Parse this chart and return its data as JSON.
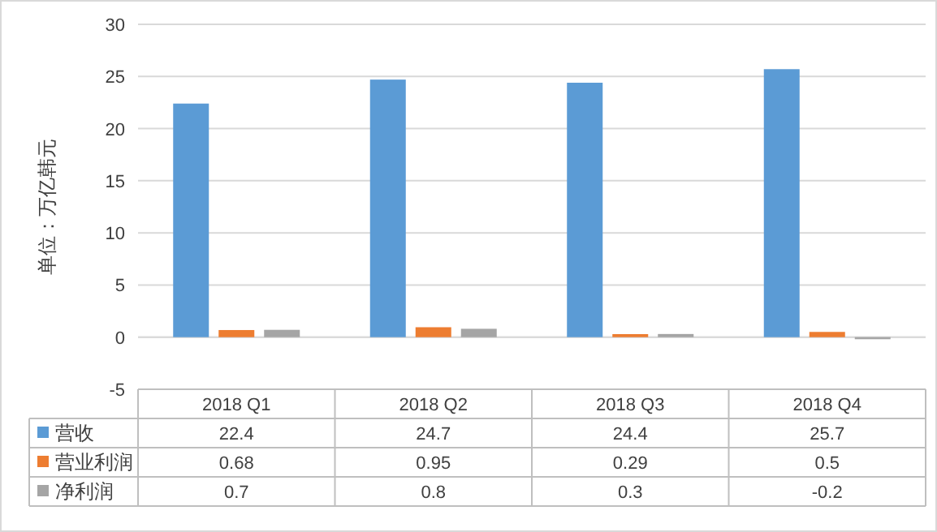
{
  "chart_data": {
    "type": "bar",
    "ylabel": "单位：万亿韩元",
    "categories": [
      "2018 Q1",
      "2018 Q2",
      "2018 Q3",
      "2018 Q4"
    ],
    "ylim": [
      -5,
      30
    ],
    "yticks": [
      -5,
      0,
      5,
      10,
      15,
      20,
      25,
      30
    ],
    "grid": "y",
    "legend": "bottom",
    "data_labels": true,
    "series": [
      {
        "name": "营收",
        "color": "#5b9bd5",
        "values": [
          22.4,
          24.7,
          24.4,
          25.7
        ]
      },
      {
        "name": "营业利润",
        "color": "#ed7d31",
        "values": [
          0.68,
          0.95,
          0.29,
          0.5
        ]
      },
      {
        "name": "净利润",
        "color": "#a5a5a5",
        "values": [
          0.7,
          0.8,
          0.3,
          -0.2
        ]
      }
    ]
  }
}
